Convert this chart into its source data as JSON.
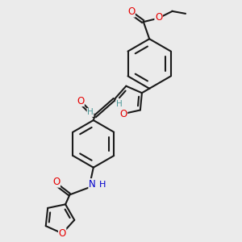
{
  "bg_color": "#ebebeb",
  "bond_color": "#1a1a1a",
  "o_color": "#e60000",
  "n_color": "#0000cc",
  "teal_color": "#4d9999",
  "line_width": 1.5,
  "figsize": [
    3.0,
    3.0
  ],
  "dpi": 100,
  "xlim": [
    0,
    10
  ],
  "ylim": [
    0,
    10
  ]
}
